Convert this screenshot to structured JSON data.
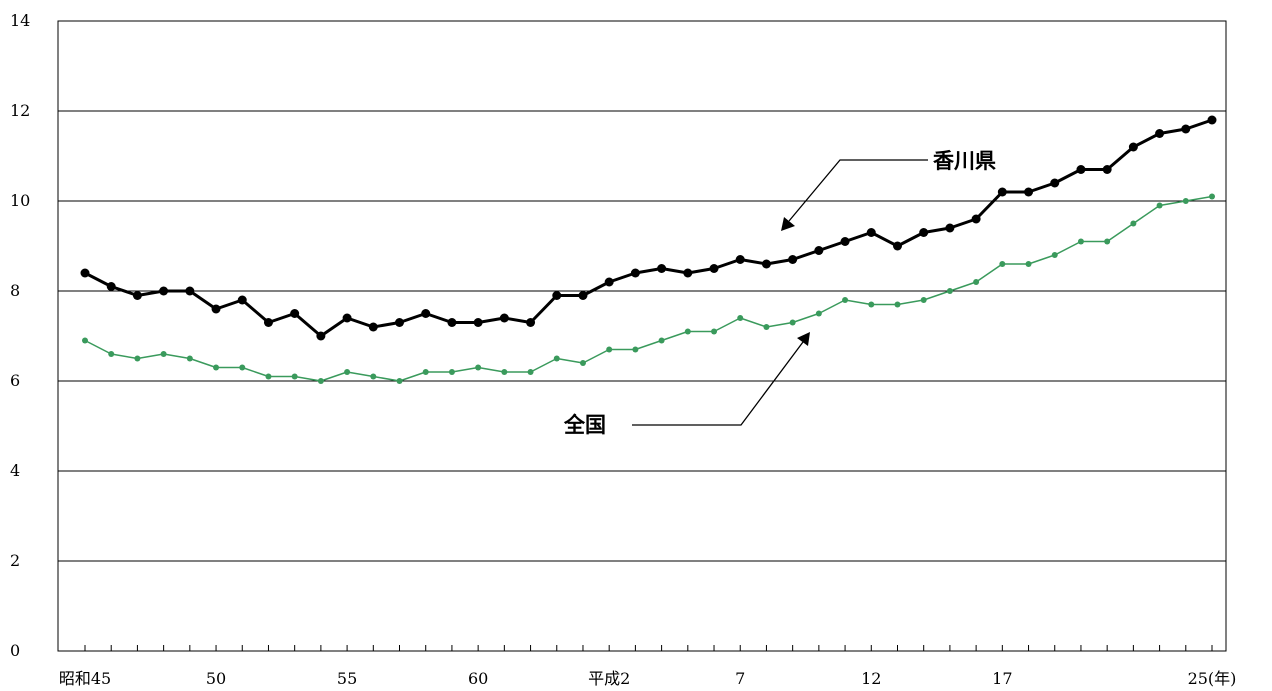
{
  "chart_data": {
    "type": "line",
    "ylim": [
      0,
      14
    ],
    "y_ticks": [
      "0",
      "2",
      "4",
      "6",
      "8",
      "10",
      "12",
      "14"
    ],
    "x_tick_labels": [
      {
        "index": 0,
        "label": "昭和45"
      },
      {
        "index": 5,
        "label": "50"
      },
      {
        "index": 10,
        "label": "55"
      },
      {
        "index": 15,
        "label": "60"
      },
      {
        "index": 20,
        "label": "平成2"
      },
      {
        "index": 25,
        "label": "7"
      },
      {
        "index": 30,
        "label": "12"
      },
      {
        "index": 35,
        "label": "17"
      },
      {
        "index": 43,
        "label": "25(年)"
      }
    ],
    "x": [
      "S45",
      "S46",
      "S47",
      "S48",
      "S49",
      "S50",
      "S51",
      "S52",
      "S53",
      "S54",
      "S55",
      "S56",
      "S57",
      "S58",
      "S59",
      "S60",
      "S61",
      "S62",
      "S63",
      "H1",
      "H2",
      "H3",
      "H4",
      "H5",
      "H6",
      "H7",
      "H8",
      "H9",
      "H10",
      "H11",
      "H12",
      "H13",
      "H14",
      "H15",
      "H16",
      "H17",
      "H18",
      "H19",
      "H20",
      "H21",
      "H22",
      "H23",
      "H24",
      "H25"
    ],
    "grid": true,
    "series": [
      {
        "name": "香川県",
        "color": "#000000",
        "values": [
          8.4,
          8.1,
          7.9,
          8.0,
          8.0,
          7.6,
          7.8,
          7.3,
          7.5,
          7.0,
          7.4,
          7.2,
          7.3,
          7.5,
          7.3,
          7.3,
          7.4,
          7.3,
          7.9,
          7.9,
          8.2,
          8.4,
          8.5,
          8.4,
          8.5,
          8.7,
          8.6,
          8.7,
          8.9,
          9.1,
          9.3,
          9.0,
          9.3,
          9.4,
          9.6,
          10.2,
          10.2,
          10.4,
          10.7,
          10.7,
          11.2,
          11.5,
          11.6,
          11.8
        ]
      },
      {
        "name": "全国",
        "color": "#3a9a5c",
        "values": [
          6.9,
          6.6,
          6.5,
          6.6,
          6.5,
          6.3,
          6.3,
          6.1,
          6.1,
          6.0,
          6.2,
          6.1,
          6.0,
          6.2,
          6.2,
          6.3,
          6.2,
          6.2,
          6.5,
          6.4,
          6.7,
          6.7,
          6.9,
          7.1,
          7.1,
          7.4,
          7.2,
          7.3,
          7.5,
          7.8,
          7.7,
          7.7,
          7.8,
          8.0,
          8.2,
          8.6,
          8.6,
          8.8,
          9.1,
          9.1,
          9.5,
          9.9,
          10.0,
          10.1
        ]
      }
    ],
    "annotations": [
      {
        "text": "香川県",
        "series": "香川県"
      },
      {
        "text": "全国",
        "series": "全国"
      }
    ]
  }
}
